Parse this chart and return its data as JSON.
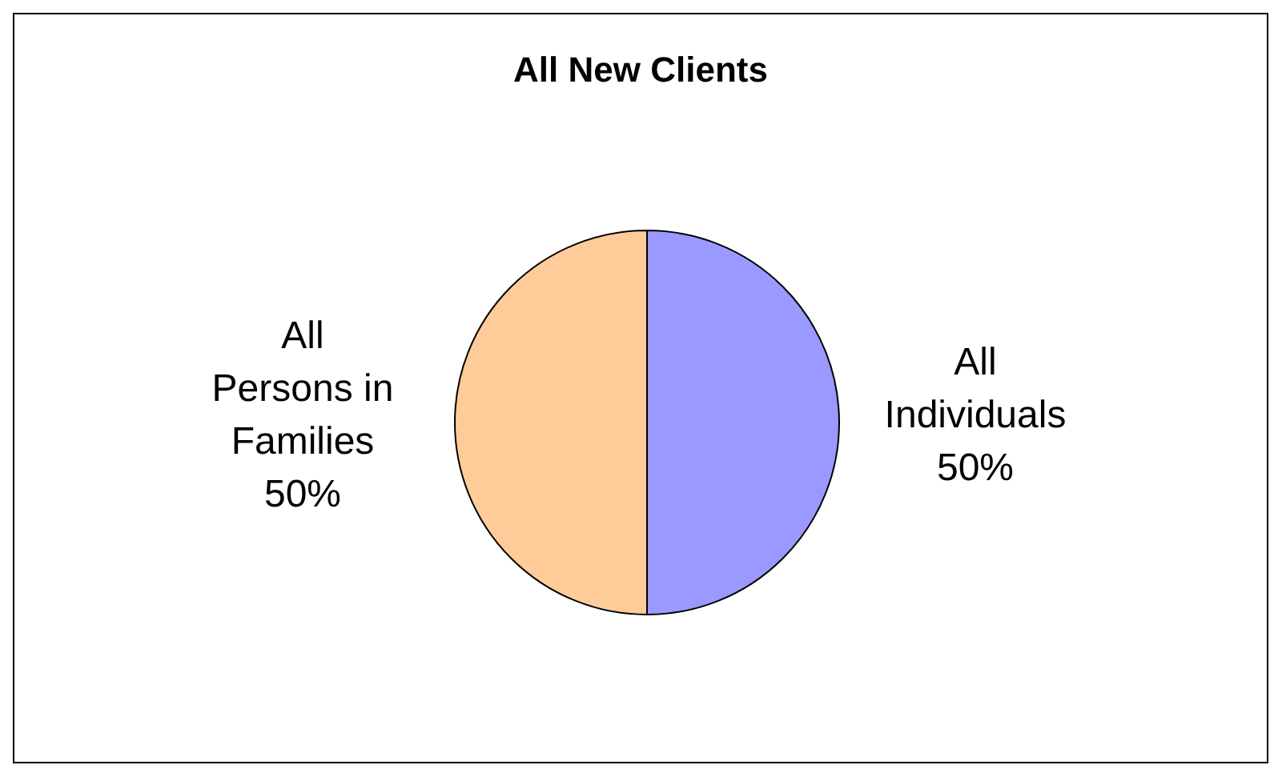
{
  "chart_data": {
    "type": "pie",
    "title": "All New Clients",
    "categories": [
      "All Individuals",
      "All Persons in Families"
    ],
    "values": [
      50,
      50
    ],
    "colors": [
      "#9999ff",
      "#ffcc99"
    ],
    "value_labels": [
      "50%",
      "50%"
    ]
  }
}
